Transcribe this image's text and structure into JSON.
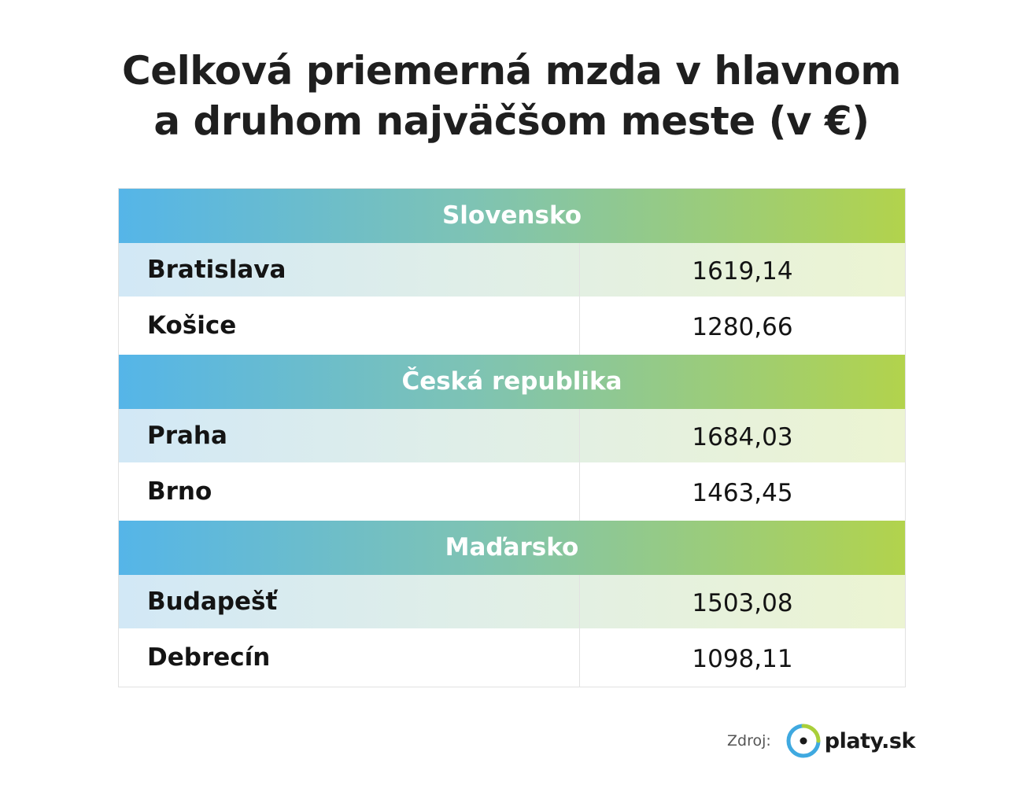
{
  "title": {
    "line1": "Celková priemerná mzda v hlavnom",
    "line2": "a druhom najväčšom meste (v €)"
  },
  "chart_data": {
    "type": "table",
    "title": "Celková priemerná mzda v hlavnom a druhom najväčšom meste (v €)",
    "groups": [
      {
        "name": "Slovensko",
        "rows": [
          {
            "city": "Bratislava",
            "value": "1619,14"
          },
          {
            "city": "Košice",
            "value": "1280,66"
          }
        ]
      },
      {
        "name": "Česká republika",
        "rows": [
          {
            "city": "Praha",
            "value": "1684,03"
          },
          {
            "city": "Brno",
            "value": "1463,45"
          }
        ]
      },
      {
        "name": "Maďarsko",
        "rows": [
          {
            "city": "Budapešť",
            "value": "1503,08"
          },
          {
            "city": "Debrecín",
            "value": "1098,11"
          }
        ]
      }
    ]
  },
  "source": {
    "label": "Zdroj:",
    "logo_text": "platy.sk"
  },
  "colors": {
    "header_gradient_start": "#55b5e8",
    "header_gradient_end": "#b2d34c",
    "logo_blue": "#3fa9e0",
    "logo_green": "#a9cf3a"
  }
}
